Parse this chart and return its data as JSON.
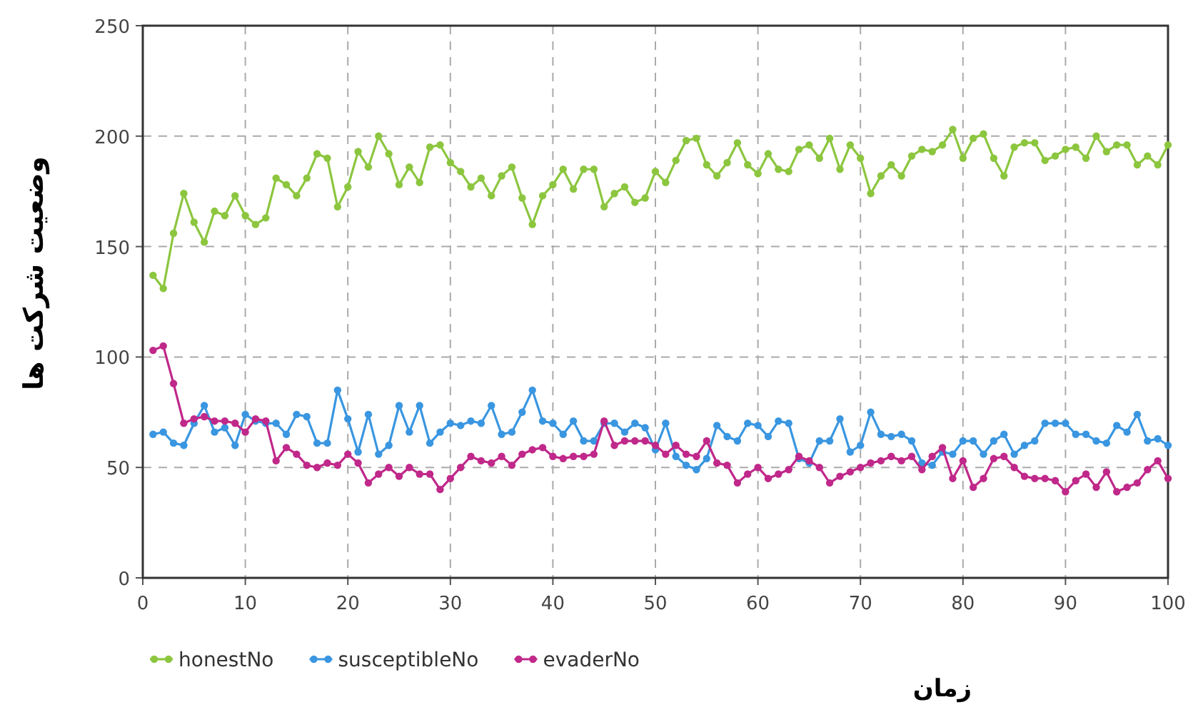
{
  "chart_data": {
    "type": "line",
    "xlabel": "زمان",
    "ylabel": "وضعیت شرکت ها",
    "x": [
      1,
      2,
      3,
      4,
      5,
      6,
      7,
      8,
      9,
      10,
      11,
      12,
      13,
      14,
      15,
      16,
      17,
      18,
      19,
      20,
      21,
      22,
      23,
      24,
      25,
      26,
      27,
      28,
      29,
      30,
      31,
      32,
      33,
      34,
      35,
      36,
      37,
      38,
      39,
      40,
      41,
      42,
      43,
      44,
      45,
      46,
      47,
      48,
      49,
      50,
      51,
      52,
      53,
      54,
      55,
      56,
      57,
      58,
      59,
      60,
      61,
      62,
      63,
      64,
      65,
      66,
      67,
      68,
      69,
      70,
      71,
      72,
      73,
      74,
      75,
      76,
      77,
      78,
      79,
      80,
      81,
      82,
      83,
      84,
      85,
      86,
      87,
      88,
      89,
      90,
      91,
      92,
      93,
      94,
      95,
      96,
      97,
      98,
      99,
      100
    ],
    "xlim": [
      0,
      100
    ],
    "ylim": [
      0,
      250
    ],
    "xticks": [
      0,
      10,
      20,
      30,
      40,
      50,
      60,
      70,
      80,
      90,
      100
    ],
    "yticks": [
      0,
      50,
      100,
      150,
      200,
      250
    ],
    "grid": true,
    "legend": "bottom left",
    "marker": "circle",
    "line_style": "solid",
    "series": [
      {
        "name": "honestNo",
        "color": "#8cc63f",
        "values": [
          137,
          131,
          156,
          174,
          161,
          152,
          166,
          164,
          173,
          164,
          160,
          163,
          181,
          178,
          173,
          181,
          192,
          190,
          168,
          177,
          193,
          186,
          200,
          192,
          178,
          186,
          179,
          195,
          196,
          188,
          184,
          177,
          181,
          173,
          182,
          186,
          172,
          160,
          173,
          178,
          185,
          176,
          185,
          185,
          168,
          174,
          177,
          170,
          172,
          184,
          179,
          189,
          198,
          199,
          187,
          182,
          188,
          197,
          187,
          183,
          192,
          185,
          184,
          194,
          196,
          190,
          199,
          185,
          196,
          190,
          174,
          182,
          187,
          182,
          191,
          194,
          193,
          196,
          203,
          190,
          199,
          201,
          190,
          182,
          195,
          197,
          197,
          189,
          191,
          194,
          195,
          190,
          200,
          193,
          196,
          196,
          187,
          191,
          187,
          196
        ]
      },
      {
        "name": "susceptibleNo",
        "color": "#3a96e0",
        "values": [
          65,
          66,
          61,
          60,
          70,
          78,
          66,
          68,
          60,
          74,
          71,
          70,
          70,
          65,
          74,
          73,
          61,
          61,
          85,
          72,
          57,
          74,
          56,
          60,
          78,
          66,
          78,
          61,
          66,
          70,
          69,
          71,
          70,
          78,
          65,
          66,
          75,
          85,
          71,
          70,
          65,
          71,
          62,
          62,
          70,
          70,
          66,
          70,
          68,
          58,
          70,
          55,
          51,
          49,
          54,
          69,
          64,
          62,
          70,
          69,
          64,
          71,
          70,
          54,
          52,
          62,
          62,
          72,
          57,
          60,
          75,
          65,
          64,
          65,
          62,
          52,
          51,
          57,
          56,
          62,
          62,
          56,
          62,
          65,
          56,
          60,
          62,
          70,
          70,
          70,
          65,
          65,
          62,
          61,
          69,
          66,
          74,
          62,
          63,
          60
        ]
      },
      {
        "name": "evaderNo",
        "color": "#c0288a",
        "values": [
          103,
          105,
          88,
          70,
          72,
          73,
          71,
          71,
          70,
          66,
          72,
          71,
          53,
          59,
          56,
          51,
          50,
          52,
          51,
          56,
          52,
          43,
          47,
          50,
          46,
          50,
          47,
          47,
          40,
          45,
          50,
          55,
          53,
          52,
          55,
          51,
          56,
          58,
          59,
          55,
          54,
          55,
          55,
          56,
          71,
          60,
          62,
          62,
          62,
          60,
          56,
          60,
          56,
          55,
          62,
          52,
          51,
          43,
          47,
          50,
          45,
          47,
          49,
          55,
          53,
          50,
          43,
          46,
          48,
          50,
          52,
          53,
          55,
          53,
          55,
          49,
          55,
          59,
          45,
          53,
          41,
          45,
          54,
          55,
          50,
          46,
          45,
          45,
          44,
          39,
          44,
          47,
          41,
          48,
          39,
          41,
          43,
          49,
          53,
          45
        ]
      }
    ]
  }
}
